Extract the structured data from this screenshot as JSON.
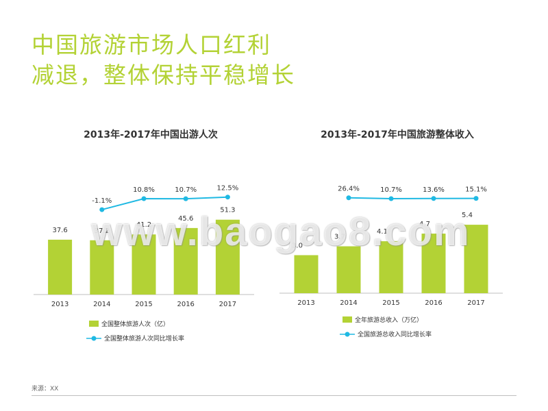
{
  "title_line1": "中国旅游市场人口红利",
  "title_line2": "减退，整体保持平稳增长",
  "watermark": "www.baogao8.com",
  "source": "来源：XX",
  "colors": {
    "bar": "#b3d235",
    "line": "#1fb9e3",
    "title": "#b3d235",
    "axis": "#bfbfbf"
  },
  "chart_data": [
    {
      "type": "bar",
      "title": "2013年-2017年中国出游人次",
      "categories": [
        "2013",
        "2014",
        "2015",
        "2016",
        "2017"
      ],
      "series": [
        {
          "name": "全国整体旅游人次（亿）",
          "kind": "bar",
          "values": [
            37.6,
            37.2,
            41.2,
            45.6,
            51.3
          ],
          "labels": [
            "37.6",
            "37.2",
            "41.2",
            "45.6",
            "51.3"
          ]
        },
        {
          "name": "全国整体旅游人次同比增长率",
          "kind": "line",
          "values": [
            null,
            -1.1,
            10.8,
            10.7,
            12.5
          ],
          "labels": [
            "",
            "-1.1%",
            "10.8%",
            "10.7%",
            "12.5%"
          ]
        }
      ],
      "legend": "bottom-left"
    },
    {
      "type": "bar",
      "title": "2013年-2017年中国旅游整体收入",
      "categories": [
        "2013",
        "2014",
        "2015",
        "2016",
        "2017"
      ],
      "series": [
        {
          "name": "全年旅游总收入（万亿）",
          "kind": "bar",
          "values": [
            3.0,
            3.7,
            4.1,
            4.7,
            5.4
          ],
          "labels": [
            "3.0",
            "3.7",
            "4.1",
            "4.7",
            "5.4"
          ]
        },
        {
          "name": "全国旅游总收入同比增长率",
          "kind": "line",
          "values": [
            null,
            26.4,
            10.7,
            13.6,
            15.1
          ],
          "labels": [
            "",
            "26.4%",
            "10.7%",
            "13.6%",
            "15.1%"
          ]
        }
      ],
      "legend": "bottom-left"
    }
  ]
}
